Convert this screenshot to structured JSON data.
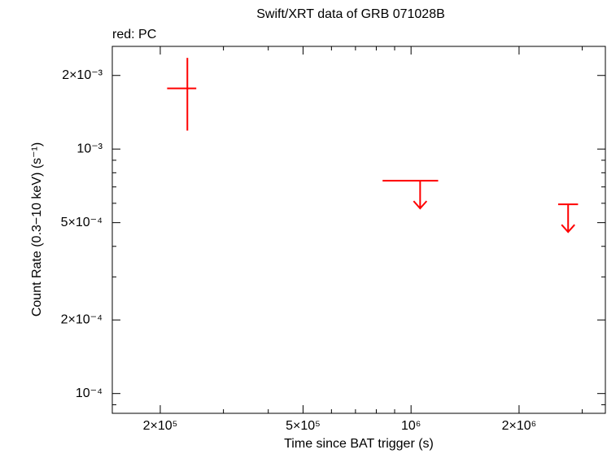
{
  "chart_data": {
    "type": "scatter",
    "title": "Swift/XRT data of GRB 071028B",
    "annotation": "red: PC",
    "xlabel": "Time since BAT trigger (s)",
    "ylabel": "Count Rate (0.3−10 keV) (s⁻¹)",
    "xscale": "log",
    "yscale": "log",
    "xlim": [
      147000,
      3480000
    ],
    "ylim": [
      8.3e-05,
      0.00263
    ],
    "xticks": [
      {
        "value": 200000,
        "label": "2×10⁵"
      },
      {
        "value": 500000,
        "label": "5×10⁵"
      },
      {
        "value": 1000000,
        "label": "10⁶"
      },
      {
        "value": 2000000,
        "label": "2×10⁶"
      }
    ],
    "xminorticks": [
      300000,
      400000,
      600000,
      700000,
      800000,
      900000,
      3000000
    ],
    "yticks": [
      {
        "value": 0.0001,
        "label": "10⁻⁴"
      },
      {
        "value": 0.0002,
        "label": "2×10⁻⁴"
      },
      {
        "value": 0.0005,
        "label": "5×10⁻⁴"
      },
      {
        "value": 0.001,
        "label": "10⁻³"
      },
      {
        "value": 0.002,
        "label": "2×10⁻³"
      }
    ],
    "yminorticks": [
      9e-05,
      0.0003,
      0.0004,
      0.0006,
      0.0007,
      0.0008,
      0.0009
    ],
    "series": [
      {
        "name": "PC",
        "color": "#ff0000",
        "x": [
          238000,
          1060000,
          2740000
        ],
        "x_lo": [
          209000,
          833000,
          2570000
        ],
        "x_hi": [
          252000,
          1190000,
          2920000
        ],
        "values": [
          0.00177,
          0.000742,
          0.000594
        ],
        "y_lo": [
          0.00119,
          null,
          null
        ],
        "y_hi": [
          0.00236,
          null,
          null
        ],
        "upper_limit": [
          false,
          true,
          true
        ]
      }
    ]
  }
}
